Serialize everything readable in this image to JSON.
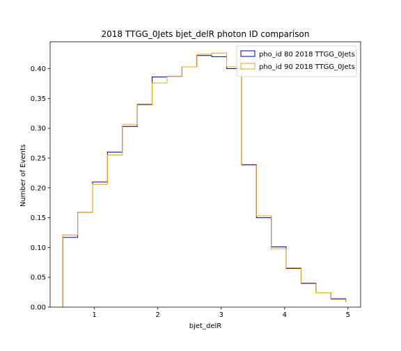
{
  "chart_data": {
    "type": "histogram-step",
    "title": "2018 TTGG_0Jets bjet_delR photon ID comparison",
    "xlabel": "bjet_delR",
    "ylabel": "Number of Events",
    "xlim": [
      0.3,
      5.2
    ],
    "ylim": [
      0.0,
      0.445
    ],
    "xticks": [
      1,
      2,
      3,
      4,
      5
    ],
    "yticks": [
      0.0,
      0.05,
      0.1,
      0.15,
      0.2,
      0.25,
      0.3,
      0.35,
      0.4
    ],
    "ytick_labels": [
      "0.00",
      "0.05",
      "0.10",
      "0.15",
      "0.20",
      "0.25",
      "0.30",
      "0.35",
      "0.40"
    ],
    "bin_edges": [
      0.5,
      0.735,
      0.97,
      1.205,
      1.44,
      1.675,
      1.91,
      2.145,
      2.38,
      2.615,
      2.85,
      3.085,
      3.32,
      3.555,
      3.79,
      4.025,
      4.26,
      4.495,
      4.73,
      4.965
    ],
    "legend_position": "upper-right",
    "series": [
      {
        "name": "pho_id 80 2018 TTGG_0Jets",
        "color": "#00008b",
        "values": [
          0.117,
          0.159,
          0.21,
          0.26,
          0.303,
          0.34,
          0.386,
          0.387,
          0.403,
          0.422,
          0.42,
          0.4,
          0.239,
          0.15,
          0.101,
          0.065,
          0.04,
          0.024,
          0.014,
          0.009
        ]
      },
      {
        "name": "pho_id 90 2018 TTGG_0Jets",
        "color": "#e8a317",
        "values": [
          0.121,
          0.159,
          0.206,
          0.255,
          0.306,
          0.339,
          0.376,
          0.387,
          0.403,
          0.424,
          0.426,
          0.403,
          0.238,
          0.153,
          0.098,
          0.066,
          0.039,
          0.024,
          0.013,
          0.008
        ]
      }
    ]
  }
}
